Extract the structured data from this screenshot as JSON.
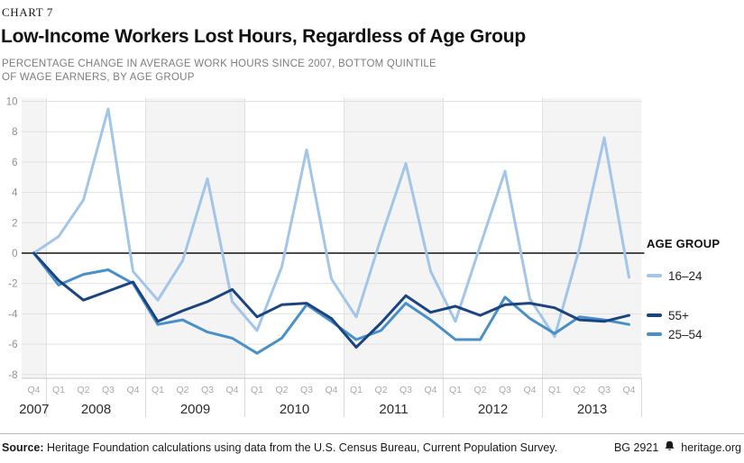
{
  "header": {
    "kicker": "CHART 7",
    "title": "Low-Income Workers Lost Hours, Regardless of Age Group",
    "subtitle_line1": "PERCENTAGE CHANGE IN AVERAGE WORK HOURS SINCE 2007, BOTTOM QUINTILE",
    "subtitle_line2": "OF WAGE EARNERS, BY AGE GROUP"
  },
  "chart_data": {
    "type": "line",
    "title": "Low-Income Workers Lost Hours, Regardless of Age Group",
    "ylabel": "Percentage change in average work hours since 2007",
    "ylim": [
      -8,
      10
    ],
    "y_ticks": [
      10,
      8,
      6,
      4,
      2,
      0,
      -2,
      -4,
      -6,
      -8
    ],
    "zero_line": true,
    "grid": true,
    "legend_position": "right",
    "x_groups": [
      {
        "year": "2007",
        "quarters": [
          "Q4"
        ],
        "shaded": true
      },
      {
        "year": "2008",
        "quarters": [
          "Q1",
          "Q2",
          "Q3",
          "Q4"
        ],
        "shaded": false
      },
      {
        "year": "2009",
        "quarters": [
          "Q1",
          "Q2",
          "Q3",
          "Q4"
        ],
        "shaded": true
      },
      {
        "year": "2010",
        "quarters": [
          "Q1",
          "Q2",
          "Q3",
          "Q4"
        ],
        "shaded": false
      },
      {
        "year": "2011",
        "quarters": [
          "Q1",
          "Q2",
          "Q3",
          "Q4"
        ],
        "shaded": true
      },
      {
        "year": "2012",
        "quarters": [
          "Q1",
          "Q2",
          "Q3",
          "Q4"
        ],
        "shaded": false
      },
      {
        "year": "2013",
        "quarters": [
          "Q1",
          "Q2",
          "Q3",
          "Q4"
        ],
        "shaded": true
      }
    ],
    "series": [
      {
        "name": "16–24",
        "color": "#a2c5e8",
        "values": [
          0,
          1.1,
          3.5,
          9.5,
          -1.2,
          -3.1,
          -0.5,
          4.9,
          -3.2,
          -5.1,
          -0.9,
          6.8,
          -1.7,
          -4.2,
          1.0,
          5.9,
          -1.2,
          -4.5,
          0.5,
          5.4,
          -3.0,
          -5.5,
          0.3,
          7.6,
          -1.6
        ]
      },
      {
        "name": "25–54",
        "color": "#4a90c8",
        "values": [
          0,
          -2.1,
          -1.4,
          -1.1,
          -2.0,
          -4.7,
          -4.4,
          -5.2,
          -5.6,
          -6.6,
          -5.6,
          -3.4,
          -4.5,
          -5.7,
          -5.1,
          -3.3,
          -4.4,
          -5.7,
          -5.7,
          -2.9,
          -4.3,
          -5.3,
          -4.2,
          -4.4,
          -4.7
        ]
      },
      {
        "name": "55+",
        "color": "#1a4480",
        "values": [
          0,
          -1.8,
          -3.1,
          -2.5,
          -1.9,
          -4.5,
          -3.8,
          -3.2,
          -2.4,
          -4.2,
          -3.4,
          -3.3,
          -4.3,
          -6.2,
          -4.6,
          -2.8,
          -3.9,
          -3.5,
          -4.1,
          -3.4,
          -3.3,
          -3.6,
          -4.4,
          -4.5,
          -4.1
        ]
      }
    ]
  },
  "legend": {
    "title": "AGE GROUP",
    "items": [
      {
        "label": "16–24",
        "color": "#a2c5e8"
      },
      {
        "label": "55+",
        "color": "#1a4480"
      },
      {
        "label": "25–54",
        "color": "#4a90c8"
      }
    ]
  },
  "footer": {
    "source_label": "Source:",
    "source_text": " Heritage Foundation calculations using data from the U.S. Census Bureau, Current Population Survey.",
    "doc_id": "BG 2921",
    "site": "heritage.org"
  },
  "colors": {
    "band": "#f4f4f4",
    "grid": "#e0e0e0",
    "zero_line": "#111111",
    "axis_bottom": "#c9c9c9",
    "quarter_label": "#a9a9a9",
    "year_label": "#2b2b2b",
    "y_label": "#8f8f8f"
  }
}
